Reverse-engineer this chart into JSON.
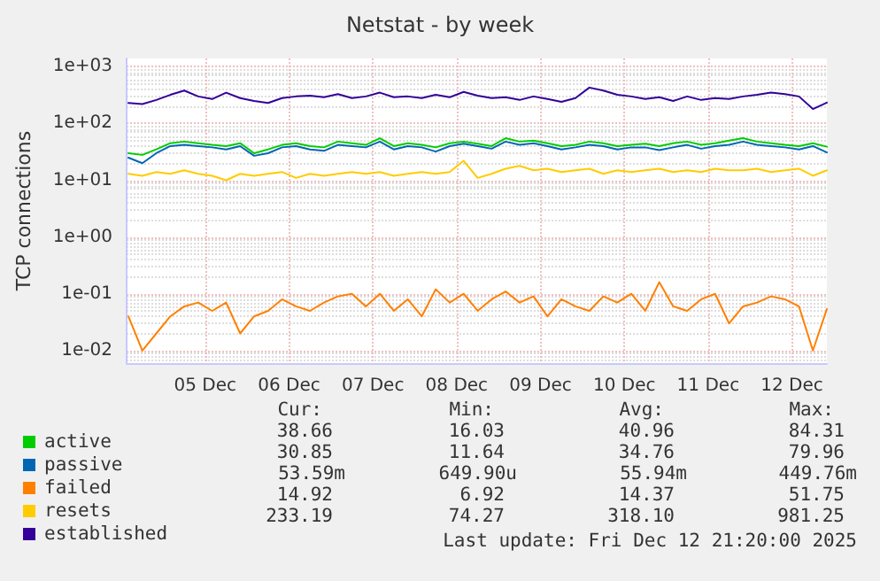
{
  "chart_data": {
    "type": "line",
    "title": "Netstat - by week",
    "ylabel": "TCP connections",
    "x": [
      "2025-12-04T14:00",
      "2025-12-04T18:00",
      "2025-12-04T22:00",
      "2025-12-05T02:00",
      "2025-12-05T06:00",
      "2025-12-05T10:00",
      "2025-12-05T14:00",
      "2025-12-05T18:00",
      "2025-12-05T22:00",
      "2025-12-06T02:00",
      "2025-12-06T06:00",
      "2025-12-06T10:00",
      "2025-12-06T14:00",
      "2025-12-06T18:00",
      "2025-12-06T22:00",
      "2025-12-07T02:00",
      "2025-12-07T06:00",
      "2025-12-07T10:00",
      "2025-12-07T14:00",
      "2025-12-07T18:00",
      "2025-12-07T22:00",
      "2025-12-08T02:00",
      "2025-12-08T06:00",
      "2025-12-08T10:00",
      "2025-12-08T14:00",
      "2025-12-08T18:00",
      "2025-12-08T22:00",
      "2025-12-09T02:00",
      "2025-12-09T06:00",
      "2025-12-09T10:00",
      "2025-12-09T14:00",
      "2025-12-09T18:00",
      "2025-12-09T22:00",
      "2025-12-10T02:00",
      "2025-12-10T06:00",
      "2025-12-10T10:00",
      "2025-12-10T14:00",
      "2025-12-10T18:00",
      "2025-12-10T22:00",
      "2025-12-11T02:00",
      "2025-12-11T06:00",
      "2025-12-11T10:00",
      "2025-12-11T14:00",
      "2025-12-11T18:00",
      "2025-12-11T22:00",
      "2025-12-12T02:00",
      "2025-12-12T06:00",
      "2025-12-12T10:00",
      "2025-12-12T14:00",
      "2025-12-12T18:00",
      "2025-12-12T22:00"
    ],
    "series": [
      {
        "name": "active",
        "color": "#00cc00",
        "values": [
          30,
          28,
          35,
          45,
          48,
          45,
          42,
          40,
          45,
          30,
          35,
          42,
          45,
          40,
          38,
          48,
          45,
          42,
          55,
          40,
          45,
          42,
          38,
          45,
          48,
          44,
          40,
          55,
          48,
          50,
          45,
          40,
          42,
          48,
          45,
          40,
          42,
          44,
          40,
          45,
          48,
          42,
          45,
          50,
          55,
          48,
          45,
          42,
          40,
          45,
          39
        ]
      },
      {
        "name": "passive",
        "color": "#0066b3",
        "values": [
          25,
          20,
          30,
          40,
          42,
          40,
          38,
          35,
          40,
          27,
          30,
          38,
          40,
          35,
          33,
          42,
          40,
          38,
          48,
          35,
          40,
          38,
          32,
          40,
          44,
          40,
          36,
          48,
          42,
          45,
          40,
          35,
          38,
          42,
          40,
          35,
          38,
          38,
          34,
          38,
          42,
          36,
          40,
          42,
          48,
          42,
          40,
          38,
          35,
          40,
          31
        ]
      },
      {
        "name": "failed",
        "color": "#ff8000",
        "values": [
          0.04,
          0.01,
          0.02,
          0.04,
          0.06,
          0.07,
          0.05,
          0.07,
          0.02,
          0.04,
          0.05,
          0.08,
          0.06,
          0.05,
          0.07,
          0.09,
          0.1,
          0.06,
          0.1,
          0.05,
          0.08,
          0.04,
          0.12,
          0.07,
          0.1,
          0.05,
          0.08,
          0.11,
          0.07,
          0.09,
          0.04,
          0.08,
          0.06,
          0.05,
          0.09,
          0.07,
          0.1,
          0.05,
          0.16,
          0.06,
          0.05,
          0.08,
          0.1,
          0.03,
          0.06,
          0.07,
          0.09,
          0.08,
          0.06,
          0.01,
          0.054
        ]
      },
      {
        "name": "resets",
        "color": "#ffcc00",
        "values": [
          13,
          12,
          14,
          13,
          15,
          13,
          12,
          10,
          13,
          12,
          13,
          14,
          11,
          13,
          12,
          13,
          14,
          13,
          14,
          12,
          13,
          14,
          13,
          14,
          22,
          11,
          13,
          16,
          18,
          15,
          16,
          14,
          15,
          16,
          13,
          15,
          14,
          15,
          16,
          14,
          15,
          14,
          16,
          15,
          15,
          16,
          14,
          15,
          16,
          12,
          15
        ]
      },
      {
        "name": "established",
        "color": "#330099",
        "values": [
          230,
          220,
          260,
          320,
          380,
          300,
          270,
          350,
          280,
          250,
          230,
          280,
          300,
          310,
          290,
          330,
          280,
          300,
          350,
          290,
          300,
          280,
          320,
          290,
          360,
          310,
          280,
          290,
          260,
          300,
          270,
          240,
          280,
          430,
          380,
          320,
          300,
          270,
          290,
          250,
          300,
          260,
          280,
          270,
          300,
          320,
          350,
          330,
          300,
          180,
          233
        ]
      }
    ],
    "xlim": [
      "2025-12-04T13:30",
      "2025-12-12T22:00"
    ],
    "xticks": [
      {
        "value": "2025-12-05T12:00",
        "label": "05 Dec"
      },
      {
        "value": "2025-12-06T12:00",
        "label": "06 Dec"
      },
      {
        "value": "2025-12-07T12:00",
        "label": "07 Dec"
      },
      {
        "value": "2025-12-08T12:00",
        "label": "08 Dec"
      },
      {
        "value": "2025-12-09T12:00",
        "label": "09 Dec"
      },
      {
        "value": "2025-12-10T12:00",
        "label": "10 Dec"
      },
      {
        "value": "2025-12-11T12:00",
        "label": "11 Dec"
      },
      {
        "value": "2025-12-12T12:00",
        "label": "12 Dec"
      }
    ],
    "ylim": [
      0.006,
      1400
    ],
    "yticks": [
      {
        "value": 0.01,
        "label": "1e-02"
      },
      {
        "value": 0.1,
        "label": "1e-01"
      },
      {
        "value": 1,
        "label": "1e+00"
      },
      {
        "value": 10,
        "label": "1e+01"
      },
      {
        "value": 100,
        "label": "1e+02"
      },
      {
        "value": 1000,
        "label": "1e+03"
      }
    ],
    "log": "y",
    "grid": true,
    "legend": "bottom left",
    "marker": "none",
    "line_style": "solid",
    "annotations": [
      "Cur:",
      "Min:",
      "Avg:",
      "Max:",
      "38.66",
      "16.03",
      "40.96",
      "84.31",
      "30.85",
      "11.64",
      "34.76",
      "79.96",
      "53.59m",
      "649.90u",
      "55.94m",
      "449.76m",
      "14.92",
      "6.92",
      "14.37",
      "51.75",
      "233.19",
      "74.27",
      "318.10",
      "981.25",
      "Last update: Fri Dec 12 21:20:00 2025"
    ]
  }
}
